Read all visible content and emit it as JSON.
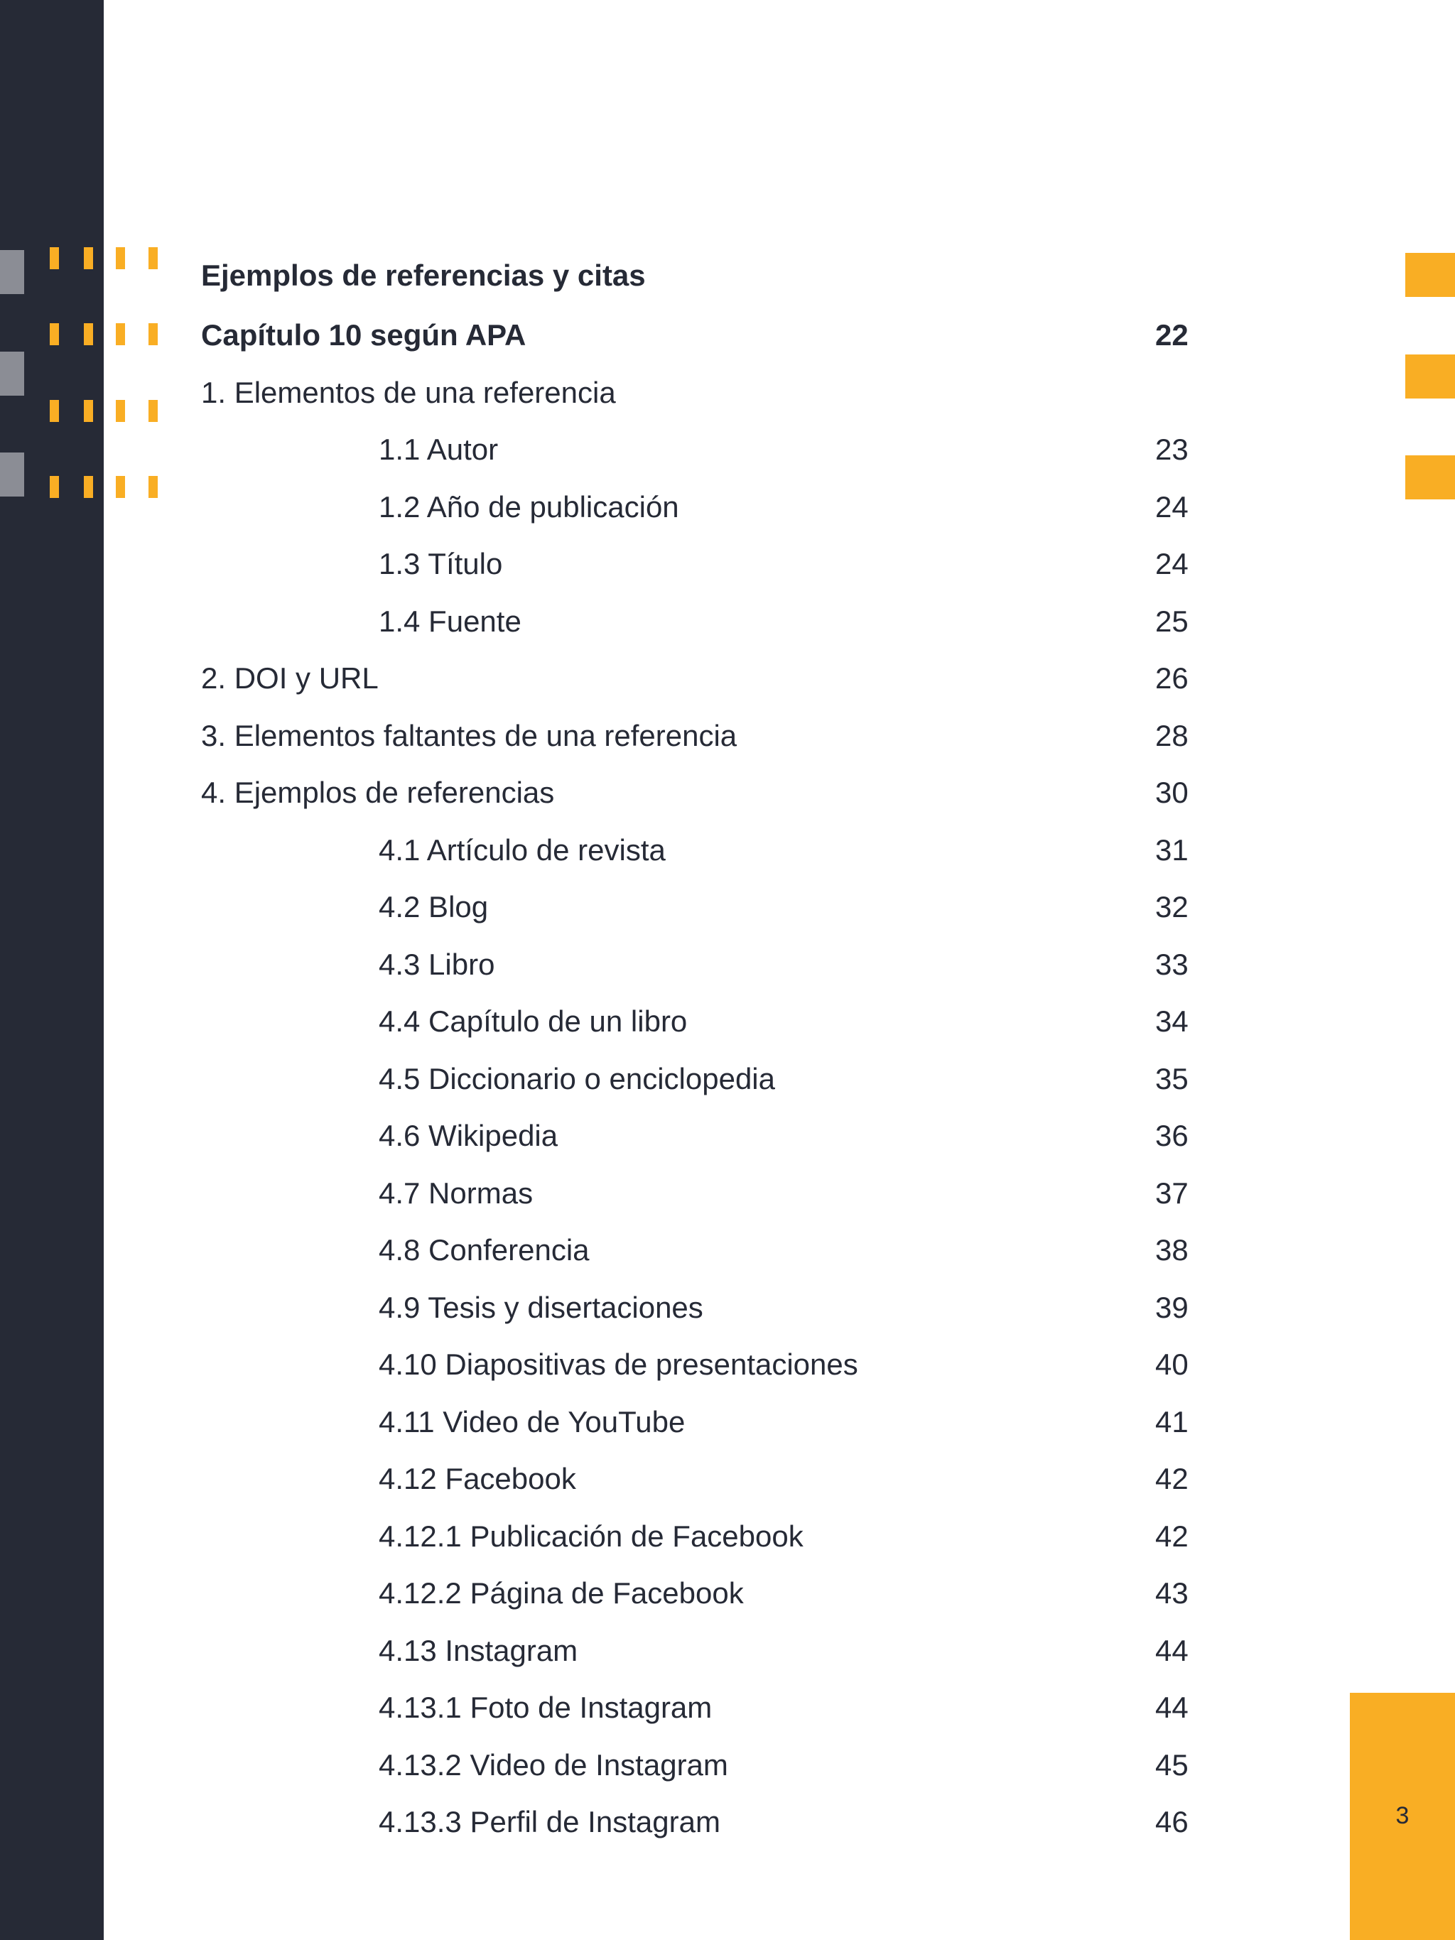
{
  "colors": {
    "sidebar": "#262a36",
    "accent": "#f9ae24",
    "gray": "#8b8d95",
    "text": "#262a36"
  },
  "page_number": "3",
  "toc": {
    "title": "Ejemplos de referencias y citas",
    "entries": [
      {
        "label": "Capítulo 10 según APA",
        "page": "22",
        "level": 0,
        "bold": true
      },
      {
        "label": "1. Elementos de una referencia",
        "page": "",
        "level": 0
      },
      {
        "label": "1.1 Autor",
        "page": "23",
        "level": 1
      },
      {
        "label": "1.2 Año de publicación",
        "page": "24",
        "level": 1
      },
      {
        "label": "1.3 Título",
        "page": "24",
        "level": 1
      },
      {
        "label": "1.4 Fuente",
        "page": "25",
        "level": 1
      },
      {
        "label": "2. DOI y URL",
        "page": "26",
        "level": 0
      },
      {
        "label": "3. Elementos faltantes de una referencia",
        "page": "28",
        "level": 0
      },
      {
        "label": "4. Ejemplos de referencias",
        "page": "30",
        "level": 0
      },
      {
        "label": "4.1 Artículo de revista",
        "page": "31",
        "level": 1
      },
      {
        "label": "4.2 Blog",
        "page": "32",
        "level": 1
      },
      {
        "label": "4.3 Libro",
        "page": "33",
        "level": 1
      },
      {
        "label": "4.4 Capítulo de un libro",
        "page": "34",
        "level": 1
      },
      {
        "label": "4.5 Diccionario o enciclopedia",
        "page": "35",
        "level": 1
      },
      {
        "label": "4.6 Wikipedia",
        "page": "36",
        "level": 1
      },
      {
        "label": "4.7 Normas",
        "page": "37",
        "level": 1
      },
      {
        "label": "4.8 Conferencia",
        "page": "38",
        "level": 1
      },
      {
        "label": "4.9 Tesis y disertaciones",
        "page": "39",
        "level": 1
      },
      {
        "label": "4.10 Diapositivas de presentaciones",
        "page": "40",
        "level": 1
      },
      {
        "label": "4.11 Video de YouTube",
        "page": "41",
        "level": 1
      },
      {
        "label": "4.12 Facebook",
        "page": "42",
        "level": 1
      },
      {
        "label": "4.12.1 Publicación de Facebook",
        "page": "42",
        "level": 1
      },
      {
        "label": "4.12.2 Página de Facebook",
        "page": "43",
        "level": 1
      },
      {
        "label": "4.13 Instagram",
        "page": "44",
        "level": 1
      },
      {
        "label": "4.13.1 Foto de Instagram",
        "page": "44",
        "level": 1
      },
      {
        "label": "4.13.2 Video de Instagram",
        "page": "45",
        "level": 1
      },
      {
        "label": "4.13.3 Perfil de Instagram",
        "page": "46",
        "level": 1
      }
    ]
  }
}
